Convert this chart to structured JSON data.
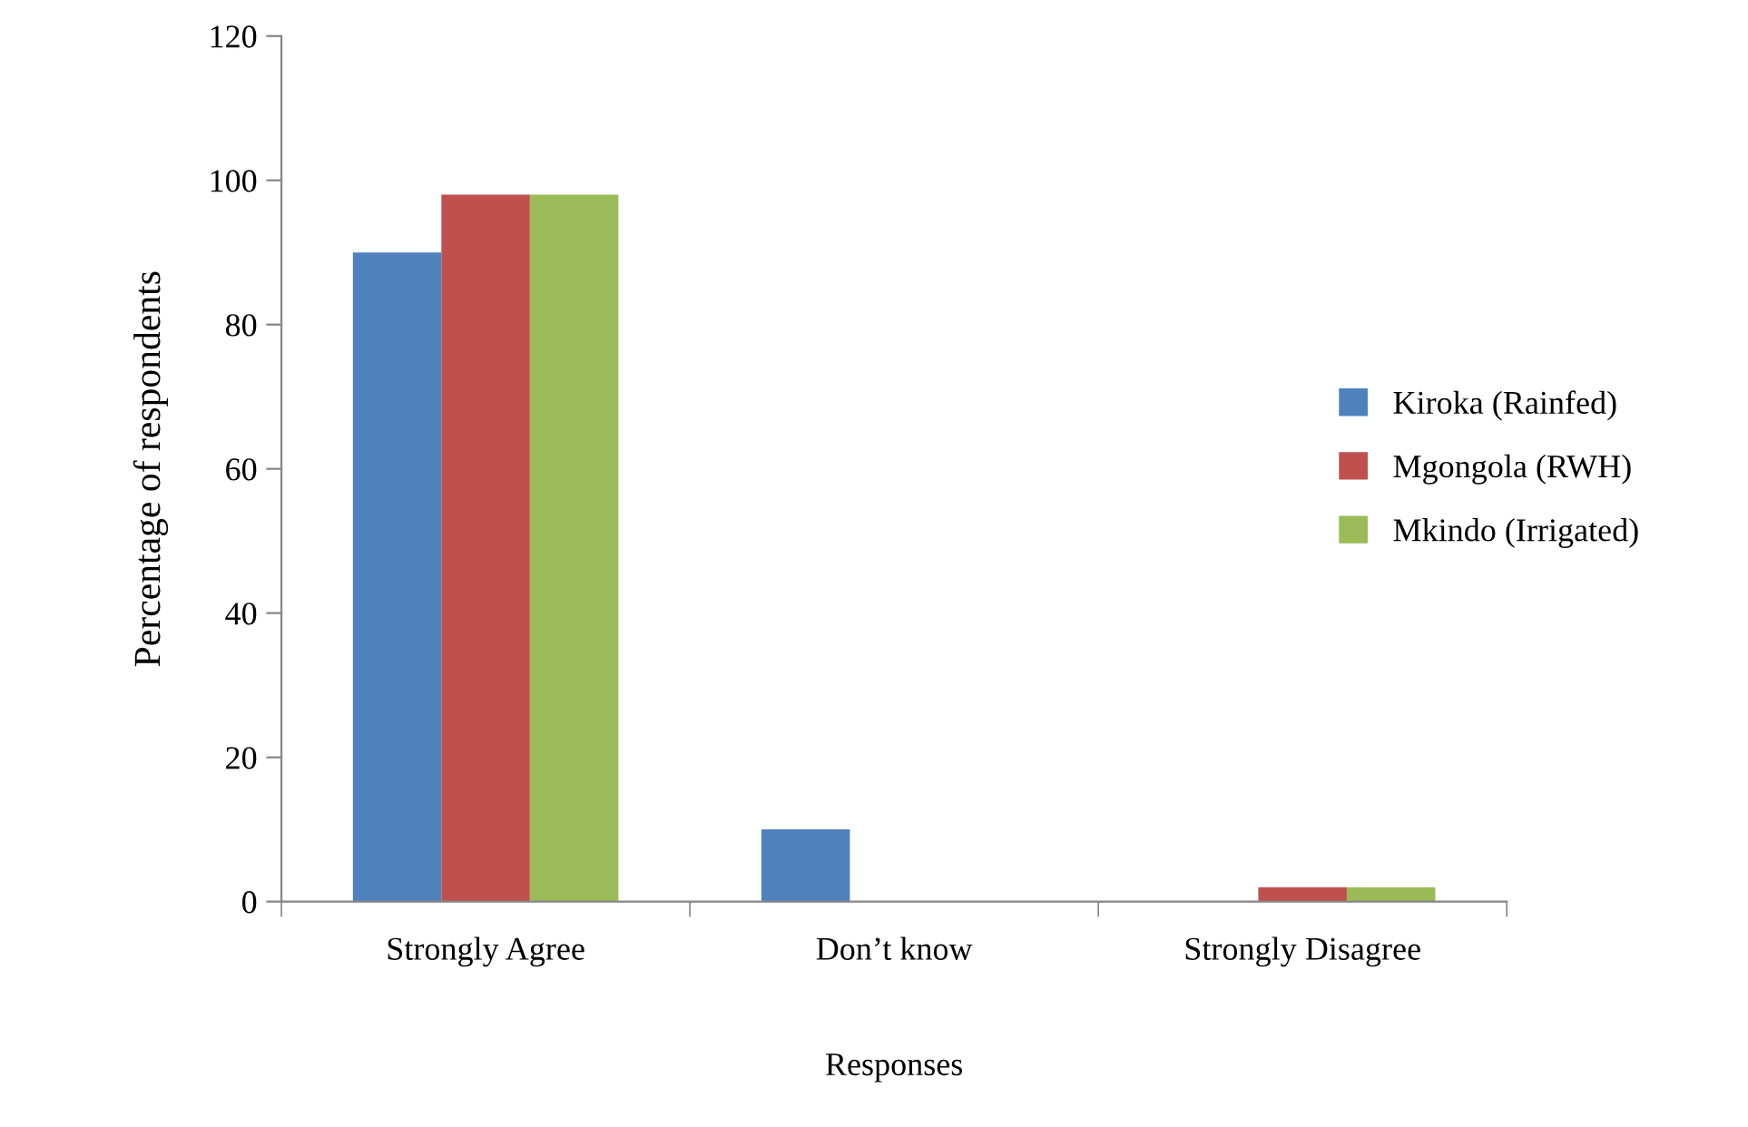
{
  "chart_data": {
    "type": "bar",
    "xlabel": "Responses",
    "ylabel": "Percentage of respondents",
    "categories": [
      "Strongly Agree",
      "Don’t know",
      "Strongly Disagree"
    ],
    "series": [
      {
        "name": "Kiroka (Rainfed)",
        "color": "#4f81bd",
        "values": [
          90,
          10,
          0
        ]
      },
      {
        "name": "Mgongola (RWH)",
        "color": "#c0504d",
        "values": [
          98,
          0,
          2
        ]
      },
      {
        "name": "Mkindo (Irrigated)",
        "color": "#9bbb59",
        "values": [
          98,
          0,
          2
        ]
      }
    ],
    "ylim": [
      0,
      120
    ],
    "yticks": [
      0,
      20,
      40,
      60,
      80,
      100,
      120
    ],
    "grid": false,
    "legend": "right"
  }
}
